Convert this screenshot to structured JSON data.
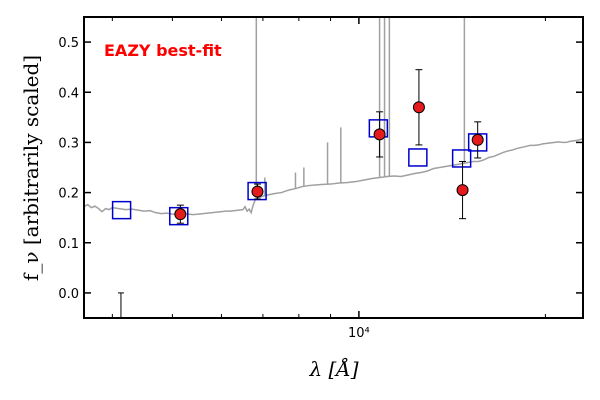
{
  "chart_data": {
    "type": "scatter",
    "title": "",
    "annotation": {
      "text": "EAZY best-fit",
      "color": "#ff0000"
    },
    "xlabel": "λ [Å]",
    "ylabel": "f_ν [arbitrarily scaled]",
    "xscale": "log",
    "xlim": [
      3600,
      23000
    ],
    "ylim": [
      -0.05,
      0.55
    ],
    "ytick_values": [
      0.0,
      0.1,
      0.2,
      0.3,
      0.4,
      0.5
    ],
    "ytick_labels": [
      "0.0",
      "0.1",
      "0.2",
      "0.3",
      "0.4",
      "0.5"
    ],
    "xtick_values": [
      10000
    ],
    "xtick_labels": [
      "10⁴"
    ],
    "colors": {
      "template": "#a0a0a0",
      "model": "#0000cc",
      "observed_fill": "#e41a1c",
      "observed_edge": "#000000",
      "errorbar": "#000000"
    },
    "series": [
      {
        "name": "template",
        "kind": "line",
        "points": [
          [
            3600,
            0.172
          ],
          [
            3650,
            0.176
          ],
          [
            3700,
            0.17
          ],
          [
            3750,
            0.173
          ],
          [
            3800,
            0.168
          ],
          [
            3850,
            0.162
          ],
          [
            3900,
            0.168
          ],
          [
            3950,
            0.166
          ],
          [
            4000,
            0.17
          ],
          [
            4100,
            0.168
          ],
          [
            4200,
            0.166
          ],
          [
            4300,
            0.167
          ],
          [
            4400,
            0.165
          ],
          [
            4500,
            0.163
          ],
          [
            4600,
            0.164
          ],
          [
            4700,
            0.16
          ],
          [
            4800,
            0.158
          ],
          [
            4900,
            0.159
          ],
          [
            5000,
            0.157
          ],
          [
            5100,
            0.156
          ],
          [
            5200,
            0.158
          ],
          [
            5300,
            0.157
          ],
          [
            5400,
            0.156
          ],
          [
            5500,
            0.157
          ],
          [
            5600,
            0.158
          ],
          [
            5700,
            0.159
          ],
          [
            5800,
            0.16
          ],
          [
            5900,
            0.161
          ],
          [
            6000,
            0.162
          ],
          [
            6100,
            0.163
          ],
          [
            6200,
            0.163
          ],
          [
            6300,
            0.164
          ],
          [
            6400,
            0.165
          ],
          [
            6500,
            0.166
          ],
          [
            6550,
            0.172
          ],
          [
            6600,
            0.163
          ],
          [
            6650,
            0.167
          ],
          [
            6700,
            0.16
          ],
          [
            6750,
            0.175
          ],
          [
            6800,
            0.185
          ],
          [
            6900,
            0.19
          ],
          [
            7000,
            0.193
          ],
          [
            7100,
            0.195
          ],
          [
            7300,
            0.198
          ],
          [
            7500,
            0.2
          ],
          [
            7700,
            0.205
          ],
          [
            7900,
            0.208
          ],
          [
            8100,
            0.212
          ],
          [
            8300,
            0.214
          ],
          [
            8500,
            0.215
          ],
          [
            8700,
            0.216
          ],
          [
            9000,
            0.217
          ],
          [
            9300,
            0.219
          ],
          [
            9600,
            0.22
          ],
          [
            9900,
            0.222
          ],
          [
            10200,
            0.225
          ],
          [
            10500,
            0.228
          ],
          [
            10800,
            0.23
          ],
          [
            11100,
            0.232
          ],
          [
            11400,
            0.233
          ],
          [
            11700,
            0.232
          ],
          [
            12000,
            0.235
          ],
          [
            12300,
            0.238
          ],
          [
            12600,
            0.24
          ],
          [
            12900,
            0.243
          ],
          [
            13200,
            0.248
          ],
          [
            13500,
            0.25
          ],
          [
            13800,
            0.252
          ],
          [
            14100,
            0.254
          ],
          [
            14400,
            0.256
          ],
          [
            14700,
            0.258
          ],
          [
            15000,
            0.26
          ],
          [
            15300,
            0.262
          ],
          [
            15600,
            0.262
          ],
          [
            15900,
            0.265
          ],
          [
            16200,
            0.27
          ],
          [
            16500,
            0.272
          ],
          [
            16800,
            0.276
          ],
          [
            17100,
            0.28
          ],
          [
            17400,
            0.283
          ],
          [
            17700,
            0.285
          ],
          [
            18000,
            0.288
          ],
          [
            18300,
            0.29
          ],
          [
            18600,
            0.292
          ],
          [
            18900,
            0.294
          ],
          [
            19200,
            0.294
          ],
          [
            19500,
            0.295
          ],
          [
            19800,
            0.297
          ],
          [
            20100,
            0.298
          ],
          [
            20400,
            0.299
          ],
          [
            20700,
            0.3
          ],
          [
            21000,
            0.301
          ],
          [
            21300,
            0.3
          ],
          [
            21600,
            0.3
          ],
          [
            21900,
            0.302
          ],
          [
            22200,
            0.303
          ],
          [
            22500,
            0.304
          ],
          [
            22800,
            0.306
          ],
          [
            23000,
            0.307
          ]
        ],
        "emission_lines": [
          [
            6830,
            0.55
          ],
          [
            7050,
            0.23
          ],
          [
            7900,
            0.24
          ],
          [
            8150,
            0.25
          ],
          [
            8900,
            0.3
          ],
          [
            9350,
            0.33
          ],
          [
            10800,
            0.55
          ],
          [
            11000,
            0.55
          ],
          [
            11200,
            0.55
          ],
          [
            14800,
            0.55
          ]
        ]
      },
      {
        "name": "model_flux",
        "kind": "square_markers",
        "x": [
          4140,
          5120,
          6850,
          10750,
          12450,
          14650,
          15550
        ],
        "y": [
          0.165,
          0.153,
          0.203,
          0.328,
          0.27,
          0.268,
          0.3
        ]
      },
      {
        "name": "observed_flux",
        "kind": "circle_errorbar",
        "x": [
          5150,
          6860,
          10800,
          12500,
          14700,
          15550
        ],
        "y": [
          0.157,
          0.202,
          0.316,
          0.37,
          0.205,
          0.305
        ],
        "yerr": [
          0.018,
          0.015,
          0.045,
          0.075,
          0.057,
          0.036
        ]
      },
      {
        "name": "upper_limit",
        "kind": "errorbar_only",
        "x": [
          4130
        ],
        "y_top": [
          0.0
        ],
        "y_bottom": [
          -0.06
        ]
      }
    ]
  }
}
